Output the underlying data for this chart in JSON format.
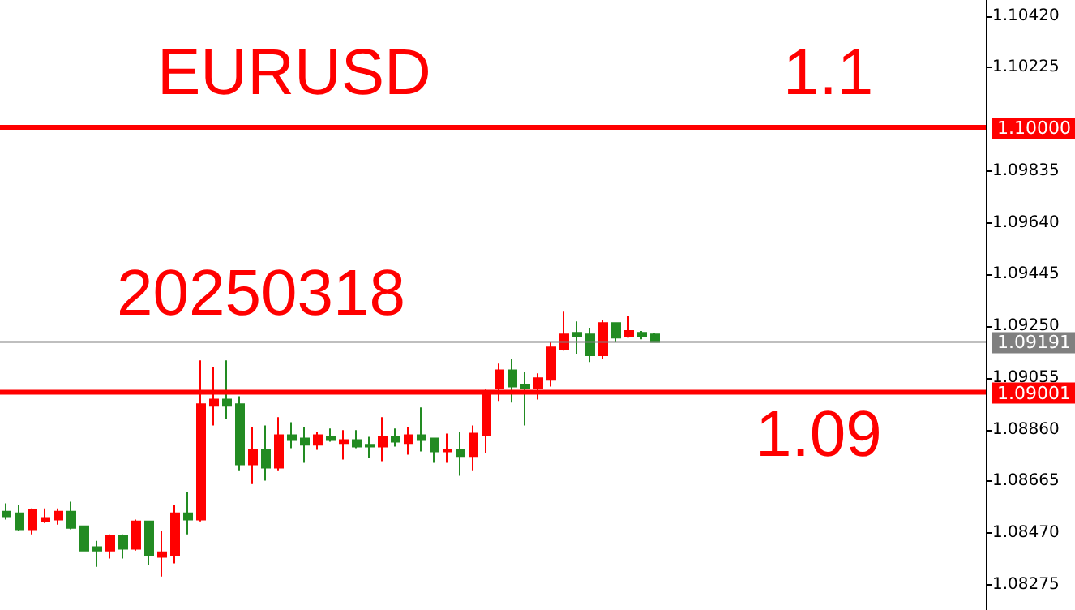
{
  "chart_data": {
    "type": "candlestick",
    "categories": [
      null,
      null,
      null,
      null,
      null,
      null,
      null,
      null,
      null,
      null,
      null,
      null,
      null,
      null,
      null,
      null,
      null,
      null,
      null,
      null,
      null,
      null,
      null,
      null,
      null,
      null,
      null,
      null,
      null,
      null,
      null,
      null,
      null,
      null,
      null,
      null,
      null,
      null,
      null,
      null,
      null,
      null,
      null,
      null,
      null,
      null,
      null,
      null,
      null,
      null,
      null,
      null,
      null,
      null,
      null,
      null,
      null,
      null,
      null,
      null,
      null,
      null,
      null,
      null,
      null,
      null,
      null,
      null,
      null,
      null,
      null,
      null,
      null,
      null,
      null,
      null
    ],
    "ohlc": [
      [
        1.08551,
        1.08582,
        1.08521,
        1.08533
      ],
      [
        1.08545,
        1.08576,
        1.08478,
        1.08484
      ],
      [
        1.08484,
        1.08563,
        1.08465,
        1.08557
      ],
      [
        1.08514,
        1.08563,
        1.08508,
        1.08527
      ],
      [
        1.08521,
        1.08563,
        1.08502,
        1.08551
      ],
      [
        1.08551,
        1.08588,
        1.08484,
        1.0849
      ],
      [
        1.08496,
        1.08496,
        1.08404,
        1.08404
      ],
      [
        1.08417,
        1.08441,
        1.08343,
        1.08404
      ],
      [
        1.08404,
        1.08465,
        1.08374,
        1.08459
      ],
      [
        1.08459,
        1.08465,
        1.08374,
        1.08411
      ],
      [
        1.08411,
        1.08521,
        1.08404,
        1.08514
      ],
      [
        1.08514,
        1.08514,
        1.0835,
        1.08386
      ],
      [
        1.0838,
        1.08478,
        1.08306,
        1.08398
      ],
      [
        1.08386,
        1.08576,
        1.08356,
        1.08545
      ],
      [
        1.08545,
        1.08625,
        1.08465,
        1.08521
      ],
      [
        1.08521,
        1.09121,
        1.08514,
        1.08956
      ],
      [
        1.0895,
        1.09097,
        1.08876,
        1.08974
      ],
      [
        1.08974,
        1.09121,
        1.08901,
        1.0895
      ],
      [
        1.08956,
        1.08986,
        1.08704,
        1.08729
      ],
      [
        1.08729,
        1.0887,
        1.08655,
        1.08784
      ],
      [
        1.08784,
        1.08876,
        1.08668,
        1.08717
      ],
      [
        1.08717,
        1.08907,
        1.08704,
        1.08839
      ],
      [
        1.08839,
        1.08888,
        1.0879,
        1.08821
      ],
      [
        1.08827,
        1.0887,
        1.08735,
        1.08803
      ],
      [
        1.08803,
        1.08852,
        1.08784,
        1.08839
      ],
      [
        1.08833,
        1.08864,
        1.08815,
        1.08821
      ],
      [
        1.08809,
        1.08858,
        1.08747,
        1.08821
      ],
      [
        1.08821,
        1.08858,
        1.0879,
        1.08796
      ],
      [
        1.08803,
        1.08833,
        1.08753,
        1.08796
      ],
      [
        1.08796,
        1.08907,
        1.08741,
        1.08833
      ],
      [
        1.08833,
        1.08864,
        1.08796,
        1.08815
      ],
      [
        1.08809,
        1.0887,
        1.08766,
        1.08839
      ],
      [
        1.08839,
        1.08944,
        1.08778,
        1.08821
      ],
      [
        1.08827,
        1.08827,
        1.08735,
        1.08778
      ],
      [
        1.08778,
        1.08845,
        1.08735,
        1.08784
      ],
      [
        1.08784,
        1.08852,
        1.08686,
        1.0876
      ],
      [
        1.0876,
        1.08876,
        1.08704,
        1.08845
      ],
      [
        1.08839,
        1.09011,
        1.08772,
        1.08993
      ],
      [
        1.09017,
        1.09109,
        1.08968,
        1.09084
      ],
      [
        1.09084,
        1.09127,
        1.08962,
        1.09023
      ],
      [
        1.09029,
        1.09078,
        1.08876,
        1.09017
      ],
      [
        1.09017,
        1.09072,
        1.08974,
        1.09054
      ],
      [
        1.09048,
        1.09189,
        1.09023,
        1.0917
      ],
      [
        1.09164,
        1.09305,
        1.09158,
        1.09219
      ],
      [
        1.09225,
        1.09268,
        1.09146,
        1.09213
      ],
      [
        1.09219,
        1.09244,
        1.09115,
        1.0914
      ],
      [
        1.0914,
        1.09275,
        1.09127,
        1.09262
      ],
      [
        1.09262,
        1.09262,
        1.09189,
        1.09207
      ],
      [
        1.09213,
        1.09287,
        1.09207,
        1.09232
      ],
      [
        1.09225,
        1.09232,
        1.09201,
        1.09213
      ],
      [
        1.09219,
        1.09225,
        1.09189,
        1.09191
      ],
      null,
      null,
      null,
      null,
      null,
      null,
      null,
      null,
      null,
      null,
      null,
      null,
      null,
      null,
      null,
      null,
      null,
      null,
      null,
      null,
      null,
      null,
      null,
      null,
      null
    ],
    "colors": [
      "#228b22",
      "#228b22",
      "#ff0000",
      "#ff0000",
      "#ff0000",
      "#228b22",
      "#228b22",
      "#228b22",
      "#ff0000",
      "#228b22",
      "#ff0000",
      "#228b22",
      "#ff0000",
      "#ff0000",
      "#228b22",
      "#ff0000",
      "#ff0000",
      "#228b22",
      "#228b22",
      "#ff0000",
      "#228b22",
      "#ff0000",
      "#228b22",
      "#228b22",
      "#ff0000",
      "#228b22",
      "#ff0000",
      "#228b22",
      "#228b22",
      "#ff0000",
      "#228b22",
      "#ff0000",
      "#228b22",
      "#228b22",
      "#ff0000",
      "#228b22",
      "#ff0000",
      "#ff0000",
      "#ff0000",
      "#228b22",
      "#228b22",
      "#ff0000",
      "#ff0000",
      "#ff0000",
      "#228b22",
      "#228b22",
      "#ff0000",
      "#228b22",
      "#ff0000",
      "#228b22",
      "#228b22",
      null,
      null,
      null,
      null,
      null,
      null,
      null,
      null,
      null,
      null,
      null,
      null,
      null,
      null,
      null,
      null,
      null,
      null,
      null,
      null,
      null,
      null,
      null,
      null,
      null
    ],
    "ylim": [
      1.0818,
      1.1048
    ],
    "yticks": [
      {
        "value": 1.08275,
        "label": "1.08275"
      },
      {
        "value": 1.0847,
        "label": "1.08470"
      },
      {
        "value": 1.08665,
        "label": "1.08665"
      },
      {
        "value": 1.0886,
        "label": "1.08860"
      },
      {
        "value": 1.09055,
        "label": "1.09055"
      },
      {
        "value": 1.0925,
        "label": "1.09250"
      },
      {
        "value": 1.09445,
        "label": "1.09445"
      },
      {
        "value": 1.0964,
        "label": "1.09640"
      },
      {
        "value": 1.09835,
        "label": "1.09835"
      },
      {
        "value": 1.10225,
        "label": "1.10225"
      },
      {
        "value": 1.1042,
        "label": "1.10420"
      }
    ],
    "tick_labels": "y",
    "grid": false,
    "ref_lines": [
      {
        "axis": "y",
        "value": 1.1,
        "label": "1.10000",
        "color": "#ff0000"
      },
      {
        "axis": "y",
        "value": 1.09001,
        "label": "1.09001",
        "color": "#ff0000"
      },
      {
        "axis": "y",
        "value": 1.09191,
        "label": "1.09191",
        "color": "#808080"
      }
    ],
    "annotations": [
      "EURUSD",
      "1.1",
      "20250318",
      "1.09"
    ]
  }
}
